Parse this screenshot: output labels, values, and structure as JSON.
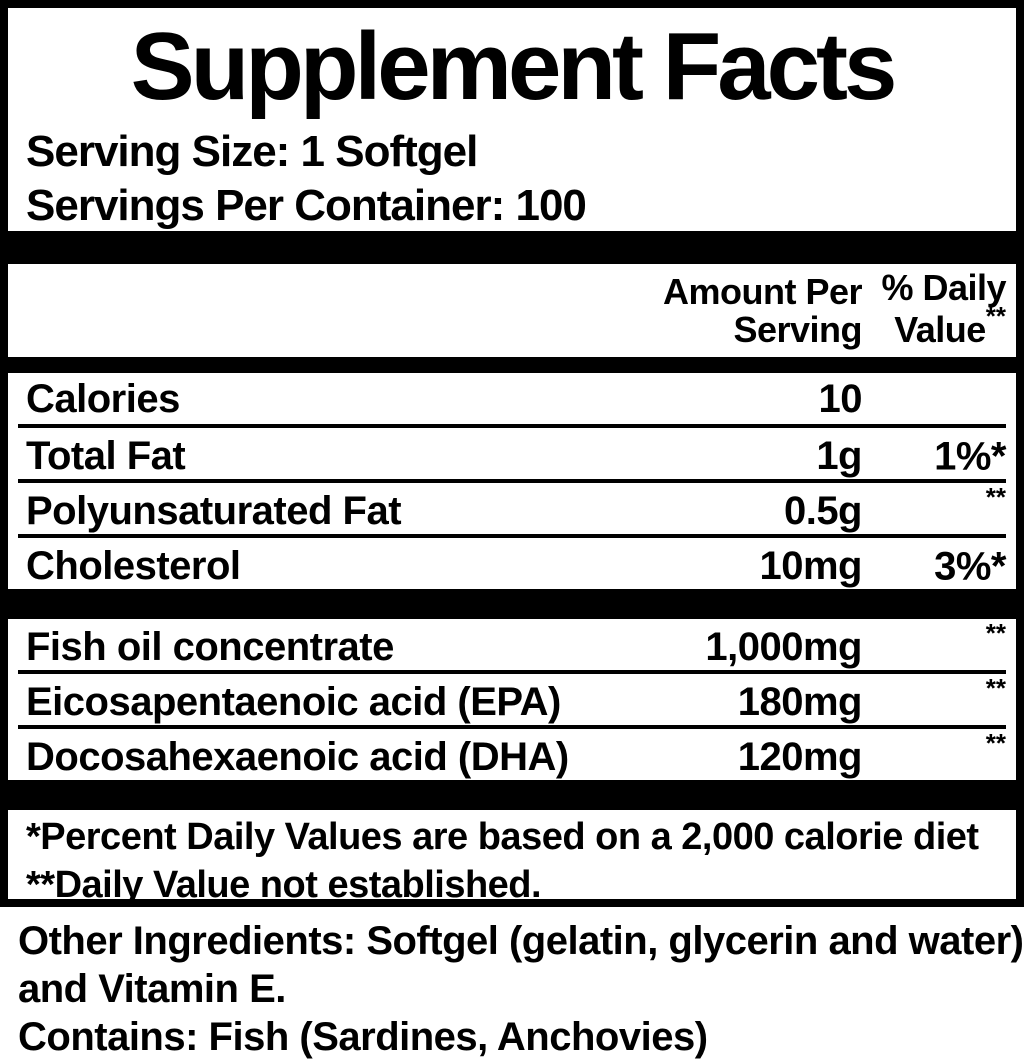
{
  "colors": {
    "ink": "#000000",
    "background": "#ffffff"
  },
  "label": {
    "title": "Supplement Facts",
    "serving_size": "Serving Size: 1 Softgel",
    "servings_per_container": "Servings Per Container: 100",
    "columns": {
      "amount": {
        "line1": "Amount Per",
        "line2": "Serving"
      },
      "daily_value": {
        "line1": "% Daily",
        "line2": "Value",
        "sup": "**"
      }
    },
    "nutrients": [
      {
        "name": "Calories",
        "amount": "10",
        "dv": "",
        "dv_sup": ""
      },
      {
        "name": "Total Fat",
        "amount": "1g",
        "dv": "1%*",
        "dv_sup": ""
      },
      {
        "name": "Polyunsaturated Fat",
        "amount": "0.5g",
        "dv": "",
        "dv_sup": "**"
      },
      {
        "name": "Cholesterol",
        "amount": "10mg",
        "dv": "3%*",
        "dv_sup": ""
      }
    ],
    "ingredients": [
      {
        "name": "Fish oil concentrate",
        "amount": "1,000mg",
        "dv": "",
        "dv_sup": "**"
      },
      {
        "name": "Eicosapentaenoic acid (EPA)",
        "amount": "180mg",
        "dv": "",
        "dv_sup": "**"
      },
      {
        "name": "Docosahexaenoic acid (DHA)",
        "amount": "120mg",
        "dv": "",
        "dv_sup": "**"
      }
    ],
    "footnotes": {
      "percent_dv": "*Percent Daily Values are based on a 2,000 calorie diet",
      "not_established": "**Daily Value not established."
    },
    "other": {
      "ingredients_line1": "Other Ingredients: Softgel (gelatin, glycerin and water)",
      "ingredients_line2": "and Vitamin E.",
      "contains": "Contains: Fish (Sardines, Anchovies)"
    }
  }
}
